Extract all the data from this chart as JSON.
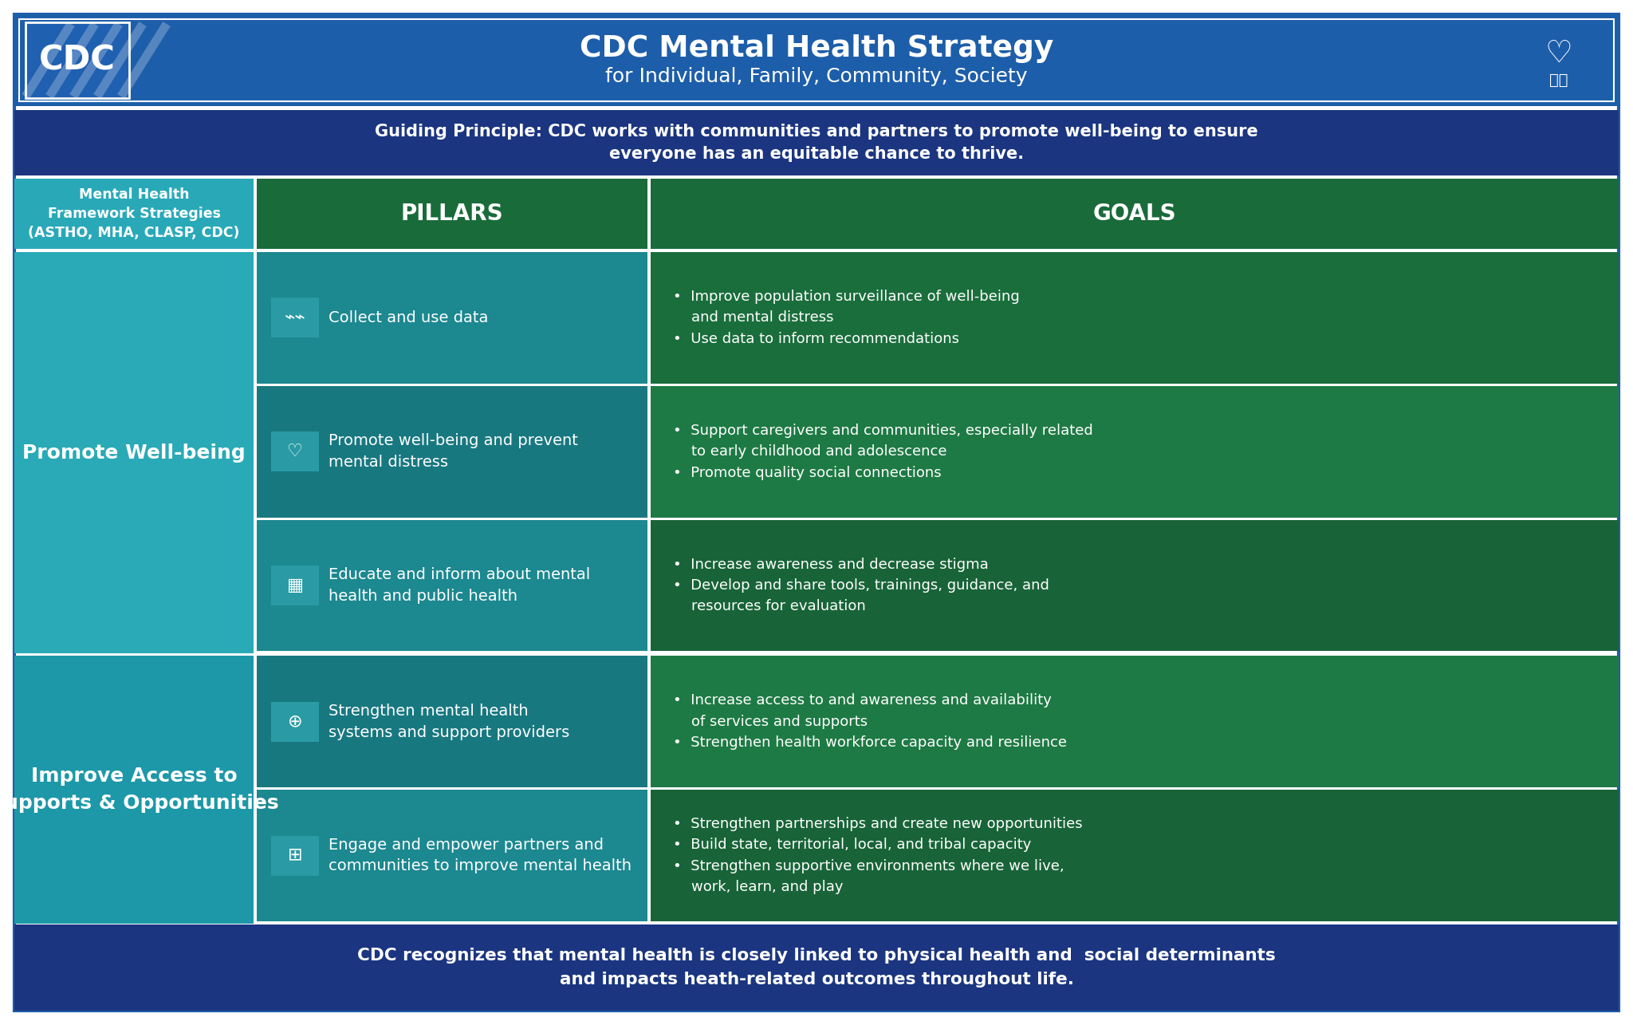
{
  "title_main": "CDC Mental Health Strategy",
  "title_sub": "for Individual, Family, Community, Society",
  "guiding_principle": "Guiding Principle: CDC works with communities and partners to promote well-being to ensure\neveryone has an equitable chance to thrive.",
  "footer": "CDC recognizes that mental health is closely linked to physical health and  social determinants\nand impacts heath-related outcomes throughout life.",
  "col1_header": "Mental Health\nFramework Strategies\n(ASTHO, MHA, CLASP, CDC)",
  "col2_header": "PILLARS",
  "col3_header": "GOALS",
  "col1_row1": "Promote Well-being",
  "col1_row2": "Improve Access to\nSupports & Opportunities",
  "pillars": [
    "Collect and use data",
    "Promote well-being and prevent\nmental distress",
    "Educate and inform about mental\nhealth and public health",
    "Strengthen mental health\nsystems and support providers",
    "Engage and empower partners and\ncommunities to improve mental health"
  ],
  "goals": [
    "•  Improve population surveillance of well-being\n    and mental distress\n•  Use data to inform recommendations",
    "•  Support caregivers and communities, especially related\n    to early childhood and adolescence\n•  Promote quality social connections",
    "•  Increase awareness and decrease stigma\n•  Develop and share tools, trainings, guidance, and\n    resources for evaluation",
    "•  Increase access to and awareness and availability\n    of services and supports\n•  Strengthen health workforce capacity and resilience",
    "•  Strengthen partnerships and create new opportunities\n•  Build state, territorial, local, and tribal capacity\n•  Strengthen supportive environments where we live,\n    work, learn, and play"
  ],
  "colors": {
    "header_blue": "#1D5EAA",
    "dark_navy": "#1B3580",
    "teal_col1_row1": "#29A9B8",
    "teal_col1_row2": "#1C95A8",
    "teal_header": "#29A9B8",
    "pillar_teal_dark": "#1A7E86",
    "pillar_teal_light": "#1D8C94",
    "goal_green_dark": "#1A6E3C",
    "goal_green_light": "#1E7D44",
    "header_green": "#1A6B3A",
    "white": "#FFFFFF",
    "bg": "#FFFFFF",
    "light_border": "#CCCCCC"
  }
}
